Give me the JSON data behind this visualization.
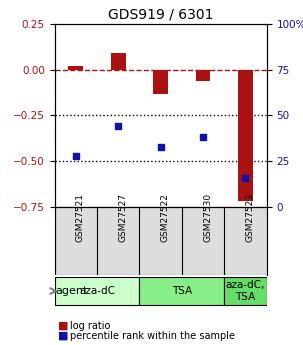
{
  "title": "GDS919 / 6301",
  "samples": [
    "GSM27521",
    "GSM27527",
    "GSM27522",
    "GSM27530",
    "GSM27523"
  ],
  "log_ratios": [
    0.02,
    0.09,
    -0.13,
    -0.06,
    -0.72
  ],
  "percentile_ranks": [
    28,
    44,
    33,
    38,
    16
  ],
  "ylim_left": [
    -0.75,
    0.25
  ],
  "ylim_right": [
    0,
    100
  ],
  "yticks_left": [
    0.25,
    0.0,
    -0.25,
    -0.5,
    -0.75
  ],
  "yticks_right": [
    100,
    75,
    50,
    25,
    0
  ],
  "bar_color": "#aa1111",
  "dot_color": "#1111aa",
  "hline_y": 0.0,
  "dotted_lines": [
    -0.25,
    -0.5
  ],
  "agent_groups": [
    {
      "label": "aza-dC",
      "cols": [
        0,
        1
      ],
      "color": "#ccffcc"
    },
    {
      "label": "TSA",
      "cols": [
        2,
        3
      ],
      "color": "#88ee88"
    },
    {
      "label": "aza-dC,\nTSA",
      "cols": [
        4
      ],
      "color": "#66dd66"
    }
  ],
  "agent_label": "agent",
  "legend_items": [
    {
      "color": "#aa1111",
      "label": "log ratio"
    },
    {
      "color": "#1111aa",
      "label": "percentile rank within the sample"
    }
  ],
  "background_color": "#ffffff",
  "plot_bg": "#ffffff",
  "grid_color": "#cccccc"
}
